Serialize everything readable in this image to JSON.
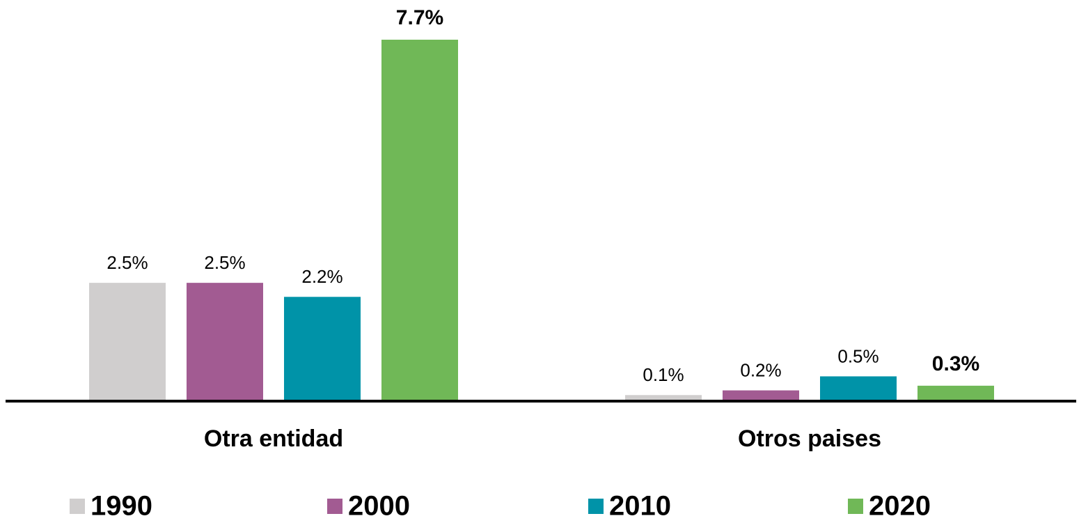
{
  "chart_data": {
    "type": "bar",
    "categories": [
      "Otra entidad",
      "Otros paises"
    ],
    "series": [
      {
        "name": "1990",
        "color": "#d0cece",
        "values": [
          2.5,
          0.1
        ],
        "value_labels": [
          "2.5%",
          "0.1%"
        ]
      },
      {
        "name": "2000",
        "color": "#a25b92",
        "values": [
          2.5,
          0.2
        ],
        "value_labels": [
          "2.5%",
          "0.2%"
        ]
      },
      {
        "name": "2010",
        "color": "#0093a8",
        "values": [
          2.2,
          0.5
        ],
        "value_labels": [
          "2.2%",
          "0.5%"
        ]
      },
      {
        "name": "2020",
        "color": "#70b857",
        "values": [
          7.7,
          0.3
        ],
        "value_labels": [
          "7.7%",
          "0.3%"
        ],
        "label_bold": true
      }
    ],
    "legend": "bottom"
  }
}
